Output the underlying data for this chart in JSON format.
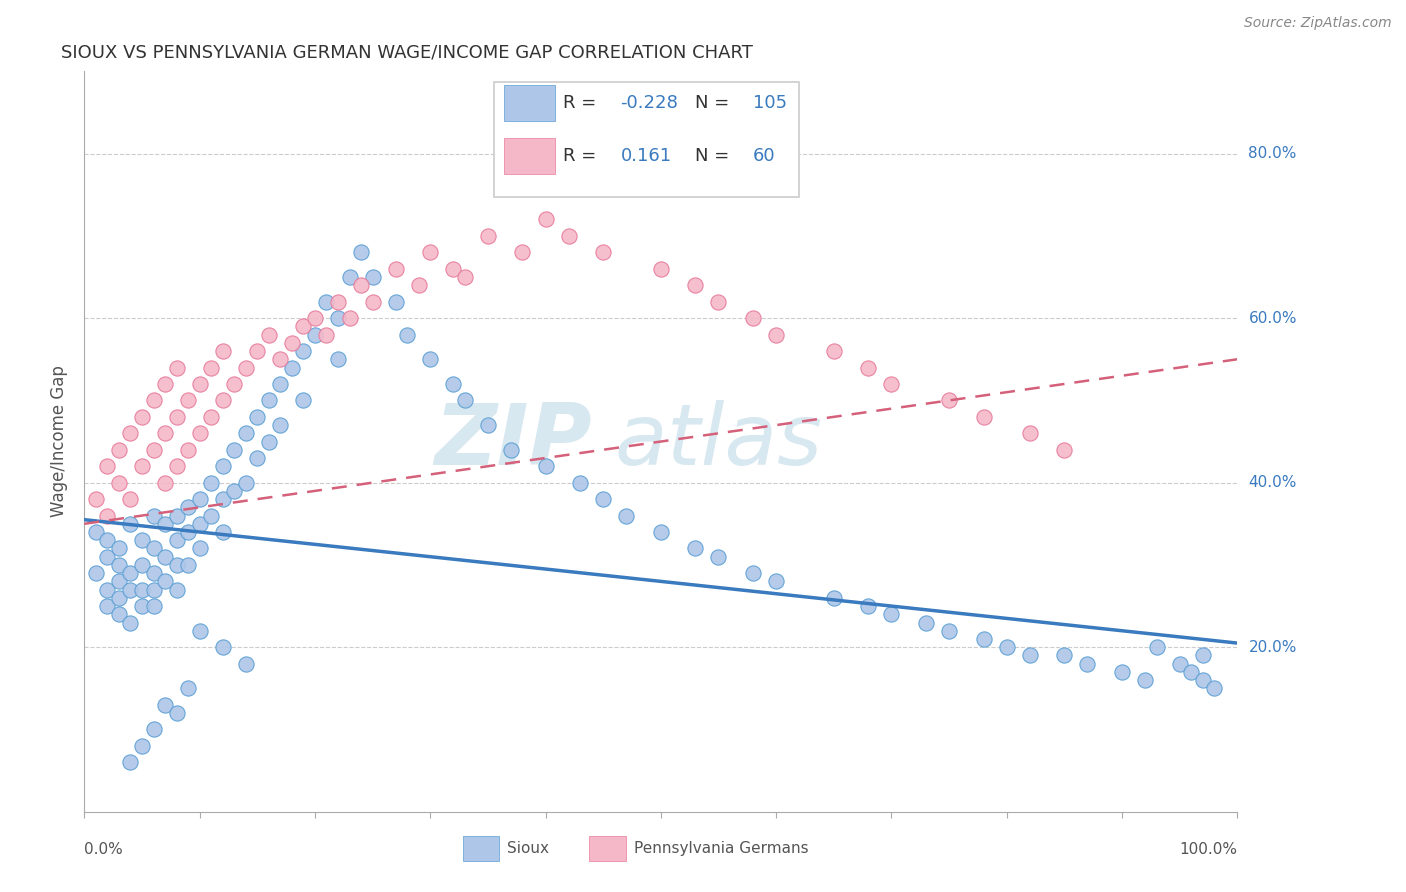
{
  "title": "SIOUX VS PENNSYLVANIA GERMAN WAGE/INCOME GAP CORRELATION CHART",
  "source": "Source: ZipAtlas.com",
  "ylabel": "Wage/Income Gap",
  "y_tick_labels": [
    "20.0%",
    "40.0%",
    "60.0%",
    "80.0%"
  ],
  "y_tick_positions": [
    0.2,
    0.4,
    0.6,
    0.8
  ],
  "xlim": [
    0.0,
    1.0
  ],
  "ylim": [
    0.0,
    0.9
  ],
  "legend_r1": "-0.228",
  "legend_n1": "105",
  "legend_r2": "0.161",
  "legend_n2": "60",
  "sioux_color": "#aec6e8",
  "pg_color": "#f4b8c8",
  "sioux_edge_color": "#5a9fd4",
  "pg_edge_color": "#e87a9a",
  "sioux_line_color": "#3a7abf",
  "pg_line_color": "#d4607a",
  "legend_r_color": "#3a7abf",
  "watermark_color": "#d8e8f0",
  "background_color": "#ffffff",
  "sioux_x": [
    0.01,
    0.01,
    0.02,
    0.02,
    0.02,
    0.02,
    0.03,
    0.03,
    0.03,
    0.03,
    0.03,
    0.04,
    0.04,
    0.04,
    0.04,
    0.05,
    0.05,
    0.05,
    0.05,
    0.06,
    0.06,
    0.06,
    0.06,
    0.06,
    0.07,
    0.07,
    0.07,
    0.08,
    0.08,
    0.08,
    0.08,
    0.09,
    0.09,
    0.09,
    0.1,
    0.1,
    0.1,
    0.11,
    0.11,
    0.12,
    0.12,
    0.12,
    0.13,
    0.13,
    0.14,
    0.14,
    0.15,
    0.15,
    0.16,
    0.16,
    0.17,
    0.17,
    0.18,
    0.19,
    0.19,
    0.2,
    0.21,
    0.22,
    0.22,
    0.23,
    0.24,
    0.25,
    0.27,
    0.28,
    0.3,
    0.32,
    0.33,
    0.35,
    0.37,
    0.4,
    0.43,
    0.45,
    0.47,
    0.5,
    0.53,
    0.55,
    0.58,
    0.6,
    0.65,
    0.68,
    0.7,
    0.73,
    0.75,
    0.78,
    0.8,
    0.82,
    0.85,
    0.87,
    0.9,
    0.92,
    0.93,
    0.95,
    0.96,
    0.97,
    0.98,
    0.97,
    0.1,
    0.12,
    0.14,
    0.09,
    0.07,
    0.08,
    0.06,
    0.05,
    0.04
  ],
  "sioux_y": [
    0.34,
    0.29,
    0.31,
    0.27,
    0.33,
    0.25,
    0.3,
    0.28,
    0.26,
    0.32,
    0.24,
    0.35,
    0.29,
    0.27,
    0.23,
    0.33,
    0.3,
    0.27,
    0.25,
    0.36,
    0.32,
    0.29,
    0.27,
    0.25,
    0.35,
    0.31,
    0.28,
    0.36,
    0.33,
    0.3,
    0.27,
    0.37,
    0.34,
    0.3,
    0.38,
    0.35,
    0.32,
    0.4,
    0.36,
    0.42,
    0.38,
    0.34,
    0.44,
    0.39,
    0.46,
    0.4,
    0.48,
    0.43,
    0.5,
    0.45,
    0.52,
    0.47,
    0.54,
    0.56,
    0.5,
    0.58,
    0.62,
    0.6,
    0.55,
    0.65,
    0.68,
    0.65,
    0.62,
    0.58,
    0.55,
    0.52,
    0.5,
    0.47,
    0.44,
    0.42,
    0.4,
    0.38,
    0.36,
    0.34,
    0.32,
    0.31,
    0.29,
    0.28,
    0.26,
    0.25,
    0.24,
    0.23,
    0.22,
    0.21,
    0.2,
    0.19,
    0.19,
    0.18,
    0.17,
    0.16,
    0.2,
    0.18,
    0.17,
    0.16,
    0.15,
    0.19,
    0.22,
    0.2,
    0.18,
    0.15,
    0.13,
    0.12,
    0.1,
    0.08,
    0.06
  ],
  "pg_x": [
    0.01,
    0.02,
    0.02,
    0.03,
    0.03,
    0.04,
    0.04,
    0.05,
    0.05,
    0.06,
    0.06,
    0.07,
    0.07,
    0.07,
    0.08,
    0.08,
    0.08,
    0.09,
    0.09,
    0.1,
    0.1,
    0.11,
    0.11,
    0.12,
    0.12,
    0.13,
    0.14,
    0.15,
    0.16,
    0.17,
    0.18,
    0.19,
    0.2,
    0.21,
    0.22,
    0.23,
    0.24,
    0.25,
    0.27,
    0.29,
    0.3,
    0.32,
    0.33,
    0.35,
    0.38,
    0.4,
    0.42,
    0.45,
    0.5,
    0.53,
    0.55,
    0.58,
    0.6,
    0.65,
    0.68,
    0.7,
    0.75,
    0.78,
    0.82,
    0.85
  ],
  "pg_y": [
    0.38,
    0.42,
    0.36,
    0.44,
    0.4,
    0.46,
    0.38,
    0.48,
    0.42,
    0.5,
    0.44,
    0.52,
    0.46,
    0.4,
    0.54,
    0.48,
    0.42,
    0.5,
    0.44,
    0.52,
    0.46,
    0.54,
    0.48,
    0.56,
    0.5,
    0.52,
    0.54,
    0.56,
    0.58,
    0.55,
    0.57,
    0.59,
    0.6,
    0.58,
    0.62,
    0.6,
    0.64,
    0.62,
    0.66,
    0.64,
    0.68,
    0.66,
    0.65,
    0.7,
    0.68,
    0.72,
    0.7,
    0.68,
    0.66,
    0.64,
    0.62,
    0.6,
    0.58,
    0.56,
    0.54,
    0.52,
    0.5,
    0.48,
    0.46,
    0.44
  ]
}
